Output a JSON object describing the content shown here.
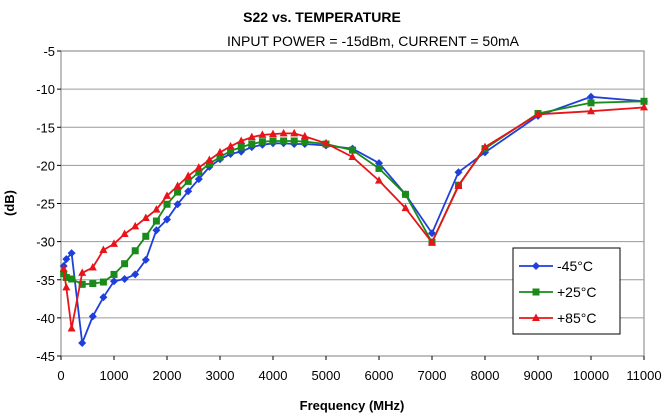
{
  "chart_data": {
    "type": "line",
    "title": "S22 vs. TEMPERATURE",
    "subtitle": "INPUT POWER = -15dBm, CURRENT =  50mA",
    "xlabel": "Frequency (MHz)",
    "ylabel": "(dB)",
    "xlim": [
      0,
      11000
    ],
    "ylim": [
      -45,
      -5
    ],
    "x_ticks": [
      "0",
      "1000",
      "2000",
      "3000",
      "4000",
      "5000",
      "6000",
      "7000",
      "8000",
      "9000",
      "10000",
      "11000"
    ],
    "y_ticks": [
      "-5",
      "-10",
      "-15",
      "-20",
      "-25",
      "-30",
      "-35",
      "-40",
      "-45"
    ],
    "grid": "horizontal",
    "legend_position": "right",
    "series": [
      {
        "name": "-45°C",
        "color": "#1f3fdc",
        "marker": "diamond",
        "x": [
          50,
          100,
          200,
          400,
          600,
          800,
          1000,
          1200,
          1400,
          1600,
          1800,
          2000,
          2200,
          2400,
          2600,
          2800,
          3000,
          3200,
          3400,
          3600,
          3800,
          4000,
          4200,
          4400,
          4600,
          5000,
          5500,
          6000,
          6500,
          7000,
          7500,
          8000,
          9000,
          10000,
          11000
        ],
        "values": [
          -33.2,
          -32.3,
          -31.5,
          -43.3,
          -39.8,
          -37.3,
          -35.2,
          -34.9,
          -34.3,
          -32.4,
          -28.5,
          -27.1,
          -25.1,
          -23.4,
          -21.8,
          -20.2,
          -19.2,
          -18.5,
          -18.2,
          -17.6,
          -17.3,
          -17.1,
          -17.1,
          -17.2,
          -17.2,
          -17.4,
          -17.8,
          -19.7,
          -23.8,
          -28.9,
          -20.9,
          -18.3,
          -13.5,
          -11.0,
          -11.6
        ]
      },
      {
        "name": "+25°C",
        "color": "#1a8a1a",
        "marker": "square",
        "x": [
          50,
          100,
          200,
          400,
          600,
          800,
          1000,
          1200,
          1400,
          1600,
          1800,
          2000,
          2200,
          2400,
          2600,
          2800,
          3000,
          3200,
          3400,
          3600,
          3800,
          4000,
          4200,
          4400,
          4600,
          5000,
          5500,
          6000,
          6500,
          7000,
          7500,
          8000,
          9000,
          10000,
          11000
        ],
        "values": [
          -34.2,
          -34.7,
          -34.9,
          -35.6,
          -35.5,
          -35.3,
          -34.3,
          -32.9,
          -31.2,
          -29.3,
          -27.3,
          -25.1,
          -23.5,
          -22.1,
          -20.9,
          -19.8,
          -18.9,
          -18.1,
          -17.6,
          -17.2,
          -16.9,
          -16.8,
          -16.8,
          -16.8,
          -16.9,
          -17.2,
          -18.0,
          -20.4,
          -23.8,
          -30.1,
          -22.6,
          -17.8,
          -13.2,
          -11.8,
          -11.6
        ]
      },
      {
        "name": "+85°C",
        "color": "#e8141a",
        "marker": "triangle",
        "x": [
          50,
          100,
          200,
          400,
          600,
          800,
          1000,
          1200,
          1400,
          1600,
          1800,
          2000,
          2200,
          2400,
          2600,
          2800,
          3000,
          3200,
          3400,
          3600,
          3800,
          4000,
          4200,
          4400,
          4600,
          5000,
          5500,
          6000,
          6500,
          7000,
          7500,
          8000,
          9000,
          10000,
          11000
        ],
        "values": [
          -33.6,
          -36.0,
          -41.4,
          -34.1,
          -33.4,
          -31.1,
          -30.3,
          -29.0,
          -28.0,
          -26.9,
          -25.8,
          -24.0,
          -22.7,
          -21.4,
          -20.3,
          -19.3,
          -18.3,
          -17.5,
          -16.8,
          -16.3,
          -16.0,
          -15.9,
          -15.8,
          -15.8,
          -16.2,
          -17.1,
          -18.9,
          -22.0,
          -25.6,
          -30.1,
          -22.7,
          -17.6,
          -13.3,
          -12.9,
          -12.4
        ]
      }
    ]
  }
}
